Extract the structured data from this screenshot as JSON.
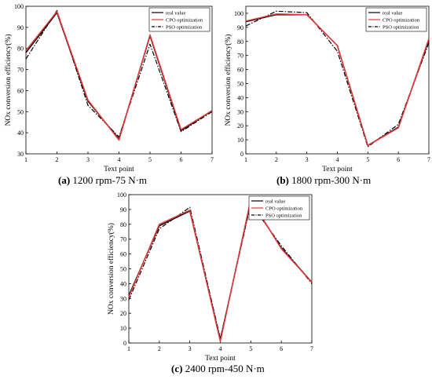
{
  "chart_data": [
    {
      "type": "line",
      "caption_tag": "(a)",
      "caption_text": "1200 rpm-75 N·m",
      "xlabel": "Text point",
      "ylabel": "NOx conversion efficiency(%)",
      "x": [
        1,
        2,
        3,
        4,
        5,
        6,
        7
      ],
      "xlim": [
        1,
        7
      ],
      "ylim": [
        30,
        100
      ],
      "xticks": [
        "1",
        "2",
        "3",
        "4",
        "5",
        "6",
        "7"
      ],
      "yticks": [
        "30",
        "40",
        "50",
        "60",
        "70",
        "80",
        "90",
        "100"
      ],
      "legend_position": "top-right",
      "series": [
        {
          "name": "real value",
          "color": "#000000",
          "style": "solid",
          "values": [
            78,
            97,
            55,
            37,
            86,
            41,
            50.5
          ]
        },
        {
          "name": "CPO optimization",
          "color": "#e8393a",
          "style": "solid",
          "values": [
            79,
            97.5,
            55.5,
            36.5,
            86.5,
            41.5,
            50.5
          ]
        },
        {
          "name": "PSO optimization",
          "color": "#000000",
          "style": "dashdot",
          "values": [
            75,
            98,
            53,
            38,
            82,
            40.5,
            50
          ]
        }
      ]
    },
    {
      "type": "line",
      "caption_tag": "(b)",
      "caption_text": "1800 rpm-300 N·m",
      "xlabel": "Text point",
      "ylabel": "NOx conversion efficiency(%)",
      "x": [
        1,
        2,
        3,
        4,
        5,
        6,
        7
      ],
      "xlim": [
        1,
        7
      ],
      "ylim": [
        0,
        105
      ],
      "xticks": [
        "1",
        "2",
        "3",
        "4",
        "5",
        "6",
        "7"
      ],
      "yticks": [
        "0",
        "10",
        "20",
        "30",
        "40",
        "50",
        "60",
        "70",
        "80",
        "90",
        "100"
      ],
      "legend_position": "top-right",
      "series": [
        {
          "name": "real value",
          "color": "#000000",
          "style": "solid",
          "values": [
            94,
            99,
            99,
            77,
            6,
            19,
            81
          ]
        },
        {
          "name": "CPO optimization",
          "color": "#e8393a",
          "style": "solid",
          "values": [
            94.5,
            99.5,
            99,
            77,
            6,
            18.5,
            82
          ]
        },
        {
          "name": "PSO optimization",
          "color": "#000000",
          "style": "dashdot",
          "values": [
            91,
            101.5,
            100.5,
            73,
            5,
            21,
            79
          ]
        }
      ]
    },
    {
      "type": "line",
      "caption_tag": "(c)",
      "caption_text": "2400 rpm-450 N·m",
      "xlabel": "Text point",
      "ylabel": "NOx conversion efficiency(%)",
      "x": [
        1,
        2,
        3,
        4,
        5,
        6,
        7
      ],
      "xlim": [
        1,
        7
      ],
      "ylim": [
        0,
        100
      ],
      "xticks": [
        "1",
        "2",
        "3",
        "4",
        "5",
        "6",
        "7"
      ],
      "yticks": [
        "0",
        "10",
        "20",
        "30",
        "40",
        "50",
        "60",
        "70",
        "80",
        "90",
        "100"
      ],
      "legend_position": "top-right",
      "series": [
        {
          "name": "real value",
          "color": "#000000",
          "style": "solid",
          "values": [
            32,
            79,
            89,
            2,
            96,
            64,
            41
          ]
        },
        {
          "name": "CPO optimization",
          "color": "#e8393a",
          "style": "solid",
          "values": [
            31,
            80,
            89.5,
            1,
            97,
            63.5,
            41
          ]
        },
        {
          "name": "PSO optimization",
          "color": "#000000",
          "style": "dashdot",
          "values": [
            29,
            77,
            91.5,
            3,
            94,
            65.5,
            40
          ]
        }
      ]
    }
  ]
}
